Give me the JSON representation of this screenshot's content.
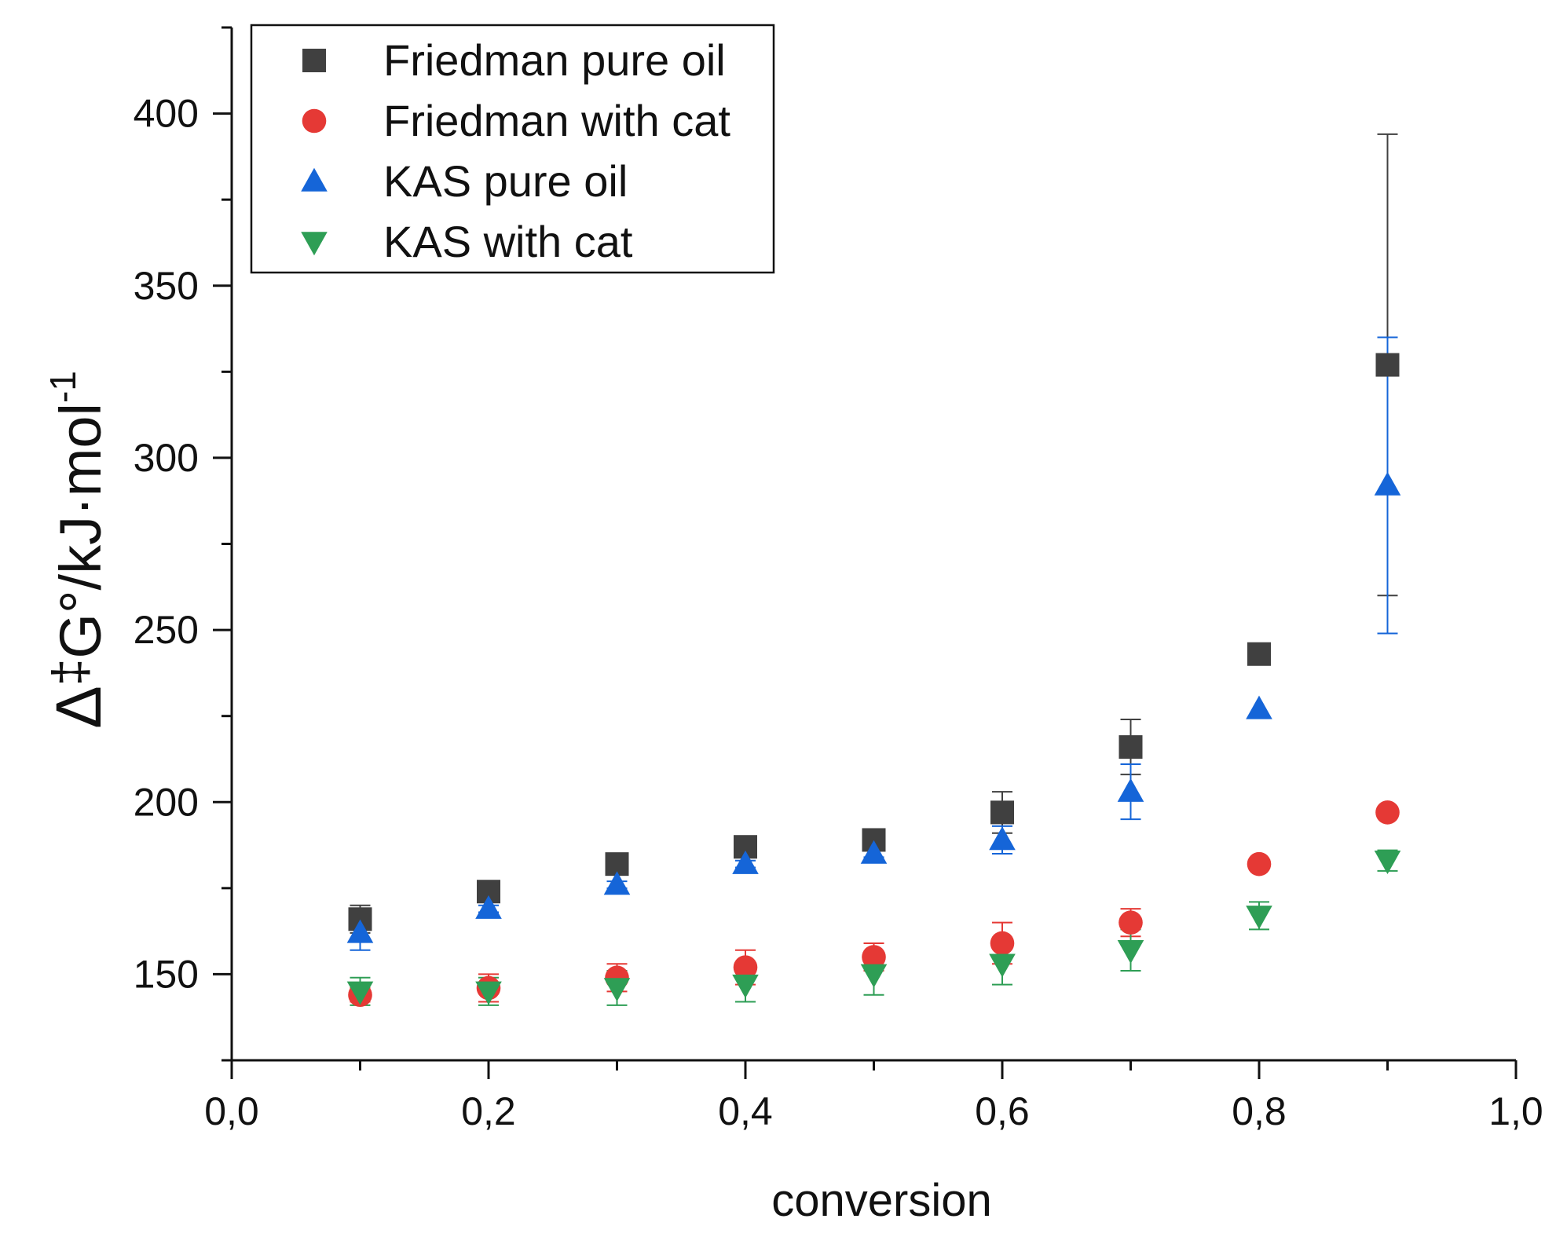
{
  "chart_data": {
    "type": "scatter",
    "title": "",
    "xlabel": "conversion",
    "ylabel": {
      "delta": "Δ",
      "dagger": "‡",
      "main": "G°/kJ·mol",
      "exponent": "-1"
    },
    "xlim": [
      0.0,
      1.0
    ],
    "ylim": [
      125,
      425
    ],
    "x_ticks": [
      {
        "value": 0.0,
        "label": "0,0"
      },
      {
        "value": 0.2,
        "label": "0,2"
      },
      {
        "value": 0.4,
        "label": "0,4"
      },
      {
        "value": 0.6,
        "label": "0,6"
      },
      {
        "value": 0.8,
        "label": "0,8"
      },
      {
        "value": 1.0,
        "label": "1,0"
      }
    ],
    "y_ticks": [
      {
        "value": 150,
        "label": "150"
      },
      {
        "value": 200,
        "label": "200"
      },
      {
        "value": 250,
        "label": "250"
      },
      {
        "value": 300,
        "label": "300"
      },
      {
        "value": 350,
        "label": "350"
      },
      {
        "value": 400,
        "label": "400"
      }
    ],
    "legend_position": "top-left",
    "series": [
      {
        "name": "Friedman pure oil",
        "marker": "square",
        "color": "#404040",
        "x": [
          0.1,
          0.2,
          0.3,
          0.4,
          0.5,
          0.6,
          0.7,
          0.8,
          0.9
        ],
        "y": [
          166,
          174,
          182,
          187,
          189,
          197,
          216,
          243,
          327
        ],
        "err": [
          4,
          2,
          2,
          2,
          2,
          6,
          8,
          0,
          67
        ]
      },
      {
        "name": "Friedman with cat",
        "marker": "circle",
        "color": "#e53935",
        "x": [
          0.1,
          0.2,
          0.3,
          0.4,
          0.5,
          0.6,
          0.7,
          0.8,
          0.9
        ],
        "y": [
          144,
          146,
          149,
          152,
          155,
          159,
          165,
          182,
          197
        ],
        "err": [
          2,
          4,
          4,
          5,
          4,
          6,
          4,
          0,
          0
        ]
      },
      {
        "name": "KAS pure oil",
        "marker": "triangle-up",
        "color": "#1565d8",
        "x": [
          0.1,
          0.2,
          0.3,
          0.4,
          0.5,
          0.6,
          0.7,
          0.8,
          0.9
        ],
        "y": [
          162,
          169,
          176,
          182,
          185,
          189,
          203,
          227,
          292
        ],
        "err": [
          5,
          1,
          1,
          1,
          1,
          4,
          8,
          0,
          43
        ]
      },
      {
        "name": "KAS with cat",
        "marker": "triangle-down",
        "color": "#2e9e55",
        "x": [
          0.1,
          0.2,
          0.3,
          0.4,
          0.5,
          0.6,
          0.7,
          0.8,
          0.9
        ],
        "y": [
          145,
          145,
          146,
          147,
          150,
          153,
          157,
          167,
          183
        ],
        "err": [
          4,
          4,
          5,
          5,
          6,
          6,
          6,
          4,
          3
        ]
      }
    ]
  }
}
